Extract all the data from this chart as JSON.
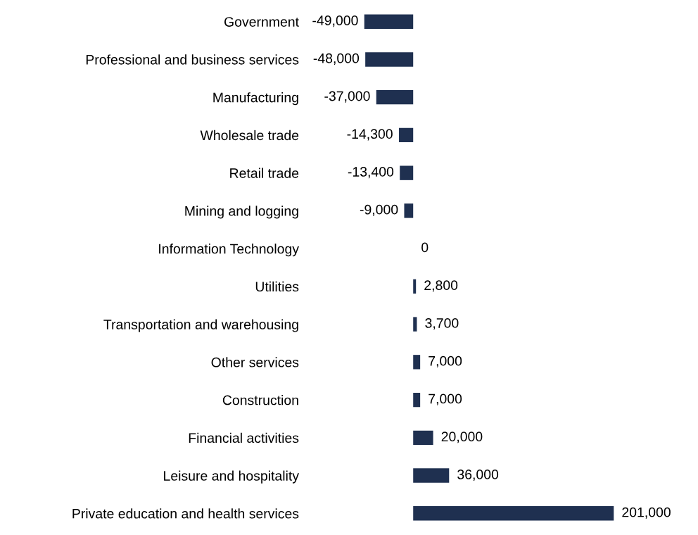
{
  "chart_data": {
    "type": "bar",
    "orientation": "horizontal",
    "categories": [
      "Government",
      "Professional and business services",
      "Manufacturing",
      "Wholesale trade",
      "Retail trade",
      "Mining and logging",
      "Information Technology",
      "Utilities",
      "Transportation and warehousing",
      "Other services",
      "Construction",
      "Financial activities",
      "Leisure and hospitality",
      "Private education and health services"
    ],
    "values": [
      -49000,
      -48000,
      -37000,
      -14300,
      -13400,
      -9000,
      0,
      2800,
      3700,
      7000,
      7000,
      20000,
      36000,
      201000
    ],
    "value_labels": [
      "-49,000",
      "-48,000",
      "-37,000",
      "-14,300",
      "-13,400",
      "-9,000",
      "0",
      "2,800",
      "3,700",
      "7,000",
      "7,000",
      "20,000",
      "36,000",
      "201,000"
    ],
    "color": "#1f3050",
    "tick_labels": "y",
    "grid": false,
    "legend": false
  }
}
